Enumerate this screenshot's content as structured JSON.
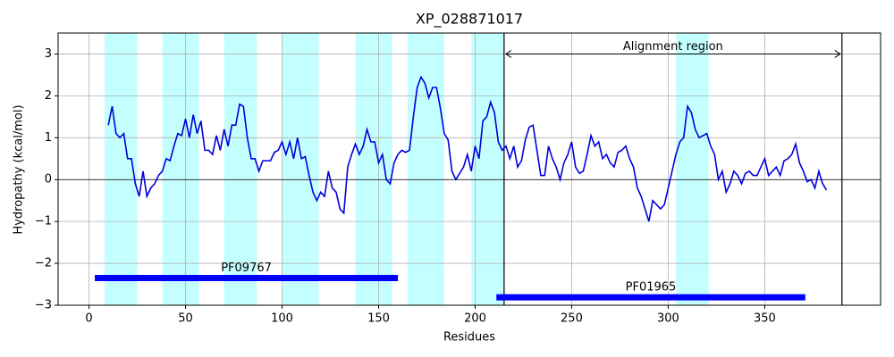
{
  "chart_data": {
    "type": "line",
    "title": "XP_028871017",
    "x_label": "Residues",
    "y_label": "Hydropathy (kcal/mol)",
    "xlim": [
      -16,
      410
    ],
    "ylim": [
      -3,
      3.5
    ],
    "xticks": [
      0,
      50,
      100,
      150,
      200,
      250,
      300,
      350
    ],
    "yticks": [
      {
        "value": -3,
        "label": "−3"
      },
      {
        "value": -2,
        "label": "−2"
      },
      {
        "value": -1,
        "label": "−1"
      },
      0,
      1,
      2,
      3
    ],
    "grid": true,
    "hline": 0,
    "regions": {
      "color": "#c4ffff",
      "spans": [
        [
          8,
          25
        ],
        [
          38,
          57
        ],
        [
          70,
          87
        ],
        [
          100,
          119
        ],
        [
          138,
          157
        ],
        [
          165,
          184
        ],
        [
          198,
          215
        ],
        [
          304,
          321
        ]
      ]
    },
    "alignment_region": {
      "label": "Alignment region",
      "start": 215,
      "end": 390,
      "y": 3
    },
    "domains": {
      "color": "#0000ff",
      "items": [
        {
          "name": "PF09767",
          "start": 3,
          "end": 160,
          "y": -2.35
        },
        {
          "name": "PF01965",
          "start": 211,
          "end": 371,
          "y": -2.81
        }
      ]
    },
    "series": [
      {
        "color": "#0000dd",
        "x": [
          10,
          12,
          14,
          16,
          18,
          20,
          22,
          24,
          26,
          28,
          30,
          32,
          34,
          36,
          38,
          40,
          42,
          44,
          46,
          48,
          50,
          52,
          54,
          56,
          58,
          60,
          62,
          64,
          66,
          68,
          70,
          72,
          74,
          76,
          78,
          80,
          82,
          84,
          86,
          88,
          90,
          92,
          94,
          96,
          98,
          100,
          102,
          104,
          106,
          108,
          110,
          112,
          114,
          116,
          118,
          120,
          122,
          124,
          126,
          128,
          130,
          132,
          134,
          136,
          138,
          140,
          142,
          144,
          146,
          148,
          150,
          152,
          154,
          156,
          158,
          160,
          162,
          164,
          166,
          168,
          170,
          172,
          174,
          176,
          178,
          180,
          182,
          184,
          186,
          188,
          190,
          192,
          194,
          196,
          198,
          200,
          202,
          204,
          206,
          208,
          210,
          212,
          214,
          216,
          218,
          220,
          222,
          224,
          226,
          228,
          230,
          232,
          234,
          236,
          238,
          240,
          242,
          244,
          246,
          248,
          250,
          252,
          254,
          256,
          258,
          260,
          262,
          264,
          266,
          268,
          270,
          272,
          274,
          276,
          278,
          280,
          282,
          284,
          286,
          288,
          290,
          292,
          294,
          296,
          298,
          300,
          302,
          304,
          306,
          308,
          310,
          312,
          314,
          316,
          318,
          320,
          322,
          324,
          326,
          328,
          330,
          332,
          334,
          336,
          338,
          340,
          342,
          344,
          346,
          348,
          350,
          352,
          354,
          356,
          358,
          360,
          362,
          364,
          366,
          368,
          370,
          372,
          374,
          376,
          378,
          380,
          382
        ],
        "values": [
          1.3,
          1.75,
          1.1,
          1.0,
          1.1,
          0.5,
          0.5,
          -0.1,
          -0.4,
          0.2,
          -0.4,
          -0.2,
          -0.1,
          0.1,
          0.2,
          0.5,
          0.45,
          0.8,
          1.1,
          1.05,
          1.45,
          1.0,
          1.55,
          1.1,
          1.4,
          0.7,
          0.7,
          0.6,
          1.05,
          0.7,
          1.2,
          0.8,
          1.3,
          1.3,
          1.8,
          1.75,
          1.0,
          0.5,
          0.5,
          0.2,
          0.45,
          0.45,
          0.45,
          0.65,
          0.7,
          0.9,
          0.6,
          0.9,
          0.5,
          1.0,
          0.5,
          0.55,
          0.1,
          -0.3,
          -0.5,
          -0.3,
          -0.4,
          0.2,
          -0.2,
          -0.3,
          -0.7,
          -0.8,
          0.3,
          0.6,
          0.85,
          0.6,
          0.8,
          1.2,
          0.9,
          0.9,
          0.4,
          0.6,
          0.0,
          -0.1,
          0.4,
          0.6,
          0.7,
          0.65,
          0.7,
          1.5,
          2.2,
          2.45,
          2.3,
          1.95,
          2.2,
          2.2,
          1.7,
          1.1,
          0.95,
          0.2,
          0.0,
          0.15,
          0.3,
          0.6,
          0.2,
          0.8,
          0.5,
          1.4,
          1.5,
          1.85,
          1.6,
          0.9,
          0.7,
          0.8,
          0.5,
          0.8,
          0.3,
          0.45,
          0.95,
          1.25,
          1.3,
          0.7,
          0.1,
          0.1,
          0.8,
          0.5,
          0.3,
          0.0,
          0.4,
          0.6,
          0.9,
          0.3,
          0.15,
          0.2,
          0.6,
          1.05,
          0.8,
          0.9,
          0.5,
          0.6,
          0.4,
          0.3,
          0.65,
          0.7,
          0.8,
          0.5,
          0.3,
          -0.2,
          -0.4,
          -0.7,
          -1.0,
          -0.5,
          -0.6,
          -0.7,
          -0.6,
          -0.2,
          0.2,
          0.6,
          0.9,
          1.0,
          1.75,
          1.6,
          1.2,
          1.0,
          1.05,
          1.1,
          0.8,
          0.6,
          0.0,
          0.2,
          -0.3,
          -0.1,
          0.2,
          0.1,
          -0.1,
          0.15,
          0.2,
          0.1,
          0.1,
          0.3,
          0.5,
          0.1,
          0.2,
          0.3,
          0.1,
          0.45,
          0.5,
          0.6,
          0.85,
          0.4,
          0.2,
          -0.05,
          0.0,
          -0.2,
          0.2,
          -0.1,
          -0.25
        ]
      }
    ]
  }
}
